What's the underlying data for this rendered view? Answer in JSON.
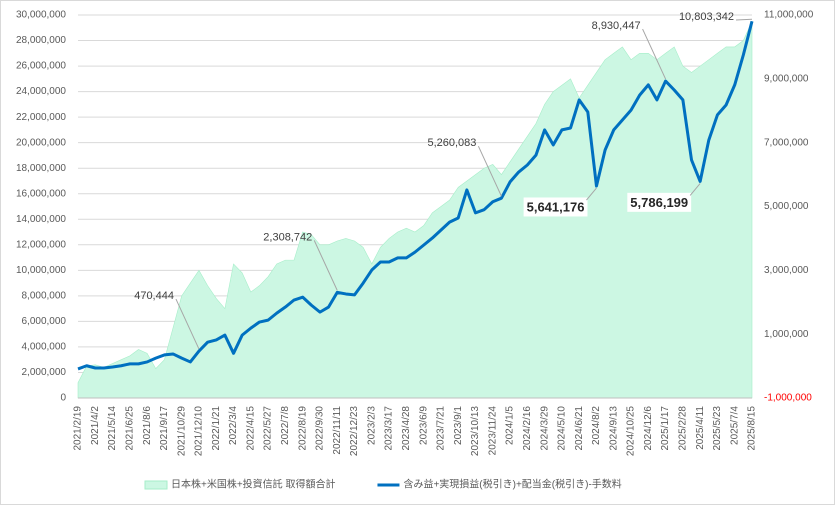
{
  "chart_data": {
    "type": "combo",
    "categories": [
      "2021/2/19",
      null,
      "2021/4/2",
      null,
      "2021/5/14",
      null,
      "2021/6/25",
      null,
      "2021/8/6",
      null,
      "2021/9/17",
      null,
      "2021/10/29",
      null,
      "2021/12/10",
      null,
      "2022/1/21",
      null,
      "2022/3/4",
      null,
      "2022/4/15",
      null,
      "2022/5/27",
      null,
      "2022/7/8",
      null,
      "2022/8/19",
      null,
      "2022/9/30",
      null,
      "2022/11/11",
      null,
      "2022/12/23",
      null,
      "2023/2/3",
      null,
      "2023/3/17",
      null,
      "2023/4/28",
      null,
      "2023/6/9",
      null,
      "2023/7/21",
      null,
      "2023/9/1",
      null,
      "2023/10/13",
      null,
      "2023/11/24",
      null,
      "2024/1/5",
      null,
      "2024/2/16",
      null,
      "2024/3/29",
      null,
      "2024/5/10",
      null,
      "2024/6/21",
      null,
      "2024/8/2",
      null,
      "2024/9/13",
      null,
      "2024/10/25",
      null,
      "2024/12/6",
      null,
      "2025/1/17",
      null,
      "2025/2/28",
      null,
      "2025/4/11",
      null,
      "2025/5/23",
      null,
      "2025/7/4",
      null,
      "2025/8/15"
    ],
    "series": [
      {
        "name": "日本株+米国株+投資信託 取得額合計",
        "type": "area",
        "color": "#ccf7e3",
        "values": [
          1200000,
          2500000,
          2600000,
          2400000,
          2700000,
          3000000,
          3300000,
          3800000,
          3500000,
          2300000,
          3000000,
          5500000,
          8000000,
          9000000,
          10000000,
          8800000,
          7800000,
          7000000,
          10500000,
          9800000,
          8300000,
          8800000,
          9500000,
          10500000,
          10800000,
          10800000,
          13000000,
          12800000,
          12000000,
          12000000,
          12300000,
          12500000,
          12300000,
          11800000,
          10500000,
          11800000,
          12500000,
          13000000,
          13300000,
          13000000,
          13500000,
          14500000,
          15000000,
          15500000,
          16500000,
          17000000,
          17500000,
          18000000,
          18300000,
          17500000,
          18500000,
          19500000,
          20500000,
          21500000,
          23000000,
          24000000,
          24500000,
          25000000,
          23500000,
          24500000,
          25500000,
          26500000,
          27000000,
          27500000,
          26500000,
          27000000,
          27000000,
          26500000,
          27000000,
          27500000,
          26000000,
          25500000,
          26000000,
          26500000,
          27000000,
          27500000,
          27500000,
          28000000,
          29500000
        ]
      },
      {
        "name": "含み益+実現損益(税引き)+配当金(税引き)-手数料",
        "type": "line",
        "axis": "y2",
        "color": "#0070c0",
        "values": [
          -90000,
          10000,
          -60000,
          -60000,
          -30000,
          10000,
          70000,
          70000,
          130000,
          250000,
          350000,
          380000,
          250000,
          130000,
          470444,
          750000,
          820000,
          970000,
          400000,
          970000,
          1190000,
          1380000,
          1440000,
          1660000,
          1850000,
          2070000,
          2160000,
          1910000,
          1690000,
          1850000,
          2308742,
          2260000,
          2230000,
          2600000,
          3010000,
          3260000,
          3260000,
          3390000,
          3390000,
          3570000,
          3790000,
          4010000,
          4260000,
          4510000,
          4640000,
          5520000,
          4800000,
          4900000,
          5150000,
          5260083,
          5770000,
          6080000,
          6300000,
          6610000,
          7400000,
          6930000,
          7400000,
          7460000,
          8340000,
          7960000,
          5641176,
          6770000,
          7400000,
          7710000,
          8020000,
          8490000,
          8810000,
          8340000,
          8930447,
          8650000,
          8340000,
          6460000,
          5786199,
          7080000,
          7870000,
          8180000,
          8810000,
          9750000,
          10803342
        ],
        "value_labels": [
          null,
          null,
          null,
          null,
          null,
          null,
          null,
          null,
          null,
          null,
          null,
          null,
          null,
          null,
          "470,444",
          null,
          null,
          null,
          null,
          null,
          null,
          null,
          null,
          null,
          null,
          null,
          null,
          null,
          null,
          null,
          "2,308,742",
          null,
          null,
          null,
          null,
          null,
          null,
          null,
          null,
          null,
          null,
          null,
          null,
          null,
          null,
          null,
          null,
          null,
          null,
          "5,260,083",
          null,
          null,
          null,
          null,
          null,
          null,
          null,
          null,
          null,
          null,
          "5,641,176",
          null,
          null,
          null,
          null,
          null,
          null,
          null,
          "8,930,447",
          null,
          null,
          null,
          "5,786,199",
          null,
          null,
          null,
          null,
          null,
          "10,803,342"
        ]
      }
    ],
    "ylim": [
      0,
      30000000
    ],
    "yticks": [
      0,
      {
        "value": 2000000,
        "label": "2,000,000"
      },
      {
        "value": 4000000,
        "label": "4,000,000"
      },
      {
        "value": 6000000,
        "label": "6,000,000"
      },
      {
        "value": 8000000,
        "label": "8,000,000"
      },
      {
        "value": 10000000,
        "label": "10,000,000"
      },
      {
        "value": 12000000,
        "label": "12,000,000"
      },
      {
        "value": 14000000,
        "label": "14,000,000"
      },
      {
        "value": 16000000,
        "label": "16,000,000"
      },
      {
        "value": 18000000,
        "label": "18,000,000"
      },
      {
        "value": 20000000,
        "label": "20,000,000"
      },
      {
        "value": 22000000,
        "label": "22,000,000"
      },
      {
        "value": 24000000,
        "label": "24,000,000"
      },
      {
        "value": 26000000,
        "label": "26,000,000"
      },
      {
        "value": 28000000,
        "label": "28,000,000"
      },
      {
        "value": 30000000,
        "label": "30,000,000"
      }
    ],
    "y2lim": [
      -1000000,
      11000000
    ],
    "y2ticks": [
      {
        "value": -1000000,
        "label": "-1,000,000"
      },
      {
        "value": 1000000,
        "label": "1,000,000"
      },
      {
        "value": 3000000,
        "label": "3,000,000"
      },
      {
        "value": 5000000,
        "label": "5,000,000"
      },
      {
        "value": 7000000,
        "label": "7,000,000"
      },
      {
        "value": 9000000,
        "label": "9,000,000"
      },
      {
        "value": 11000000,
        "label": "11,000,000"
      }
    ],
    "grid": true,
    "legend": "bottom",
    "negative_tick_color": "#ff0000",
    "emphasized_labels": [
      60,
      72
    ]
  }
}
